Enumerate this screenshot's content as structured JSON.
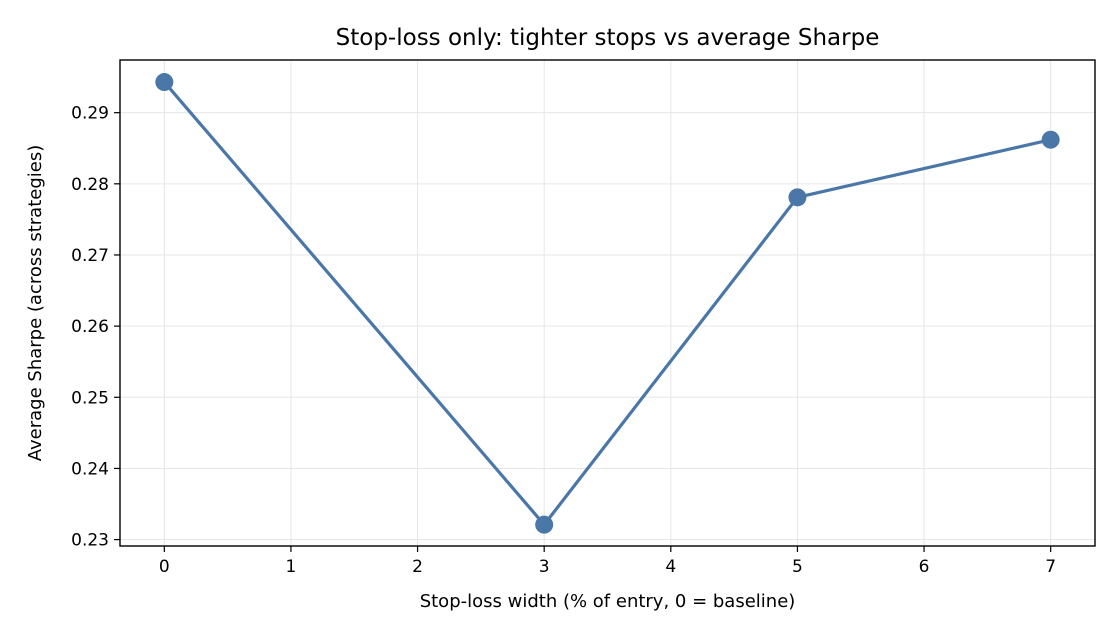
{
  "chart_data": {
    "type": "line",
    "title": "Stop-loss only: tighter stops vs average Sharpe",
    "xlabel": "Stop-loss width (% of entry, 0 = baseline)",
    "ylabel": "Average Sharpe (across strategies)",
    "x": [
      0,
      3,
      5,
      7
    ],
    "series": [
      {
        "values": [
          0.2943,
          0.2321,
          0.2781,
          0.2862
        ]
      }
    ],
    "xlim": [
      -0.35,
      7.35
    ],
    "ylim": [
      0.2291,
      0.2974
    ],
    "xticks": [
      0,
      1,
      2,
      3,
      4,
      5,
      6,
      7
    ],
    "xtick_labels": [
      "0",
      "1",
      "2",
      "3",
      "4",
      "5",
      "6",
      "7"
    ],
    "yticks": [
      0.23,
      0.24,
      0.25,
      0.26,
      0.27,
      0.28,
      0.29
    ],
    "ytick_labels": [
      "0.23",
      "0.24",
      "0.25",
      "0.26",
      "0.27",
      "0.28",
      "0.29"
    ],
    "grid": true,
    "colors": {
      "line": "#4a76a8",
      "grid": "#e6e6e6",
      "axis": "#000000"
    }
  }
}
